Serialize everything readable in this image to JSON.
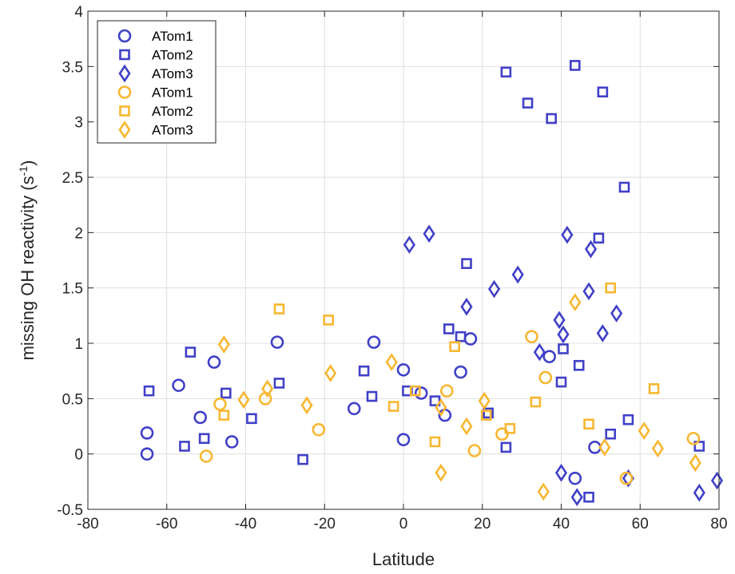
{
  "chart_data": {
    "type": "scatter",
    "xlabel": "Latitude",
    "ylabel": "missing OH reactivity (s",
    "ylabel_sup": "-1",
    "ylabel_suffix": ")",
    "xlim": [
      -80,
      80
    ],
    "ylim": [
      -0.5,
      4
    ],
    "xticks": [
      -80,
      -60,
      -40,
      -20,
      0,
      20,
      40,
      60,
      80
    ],
    "yticks": [
      -0.5,
      0,
      0.5,
      1,
      1.5,
      2,
      2.5,
      3,
      3.5,
      4
    ],
    "grid": true,
    "legend_position": "top-left",
    "colors": {
      "blue": "#4040c8",
      "orange": "#f7b731"
    },
    "series": [
      {
        "name": "ATom1",
        "marker": "circle",
        "color": "#4040c8",
        "points": [
          [
            -65,
            0.19
          ],
          [
            -65,
            0.0
          ],
          [
            -57,
            0.62
          ],
          [
            -51.5,
            0.33
          ],
          [
            -48,
            0.83
          ],
          [
            -43.5,
            0.11
          ],
          [
            -32,
            1.01
          ],
          [
            -12.5,
            0.41
          ],
          [
            -7.5,
            1.01
          ],
          [
            0,
            0.13
          ],
          [
            0,
            0.76
          ],
          [
            4.5,
            0.55
          ],
          [
            10.5,
            0.35
          ],
          [
            14.5,
            0.74
          ],
          [
            17,
            1.04
          ],
          [
            37,
            0.88
          ],
          [
            43.5,
            -0.22
          ],
          [
            48.5,
            0.06
          ]
        ]
      },
      {
        "name": "ATom2",
        "marker": "square",
        "color": "#4040c8",
        "points": [
          [
            -64.5,
            0.57
          ],
          [
            -54,
            0.92
          ],
          [
            -55.5,
            0.07
          ],
          [
            -50.5,
            0.14
          ],
          [
            -45,
            0.55
          ],
          [
            -38.5,
            0.32
          ],
          [
            -31.5,
            0.64
          ],
          [
            -25.5,
            -0.05
          ],
          [
            -10,
            0.75
          ],
          [
            -8,
            0.52
          ],
          [
            1,
            0.57
          ],
          [
            8,
            0.48
          ],
          [
            11.5,
            1.13
          ],
          [
            14.5,
            1.06
          ],
          [
            16,
            1.72
          ],
          [
            21.5,
            0.37
          ],
          [
            26,
            3.45
          ],
          [
            26,
            0.06
          ],
          [
            31.5,
            3.17
          ],
          [
            37.5,
            3.03
          ],
          [
            40,
            0.65
          ],
          [
            40.5,
            0.95
          ],
          [
            43.5,
            3.51
          ],
          [
            44.5,
            0.8
          ],
          [
            47,
            -0.39
          ],
          [
            49.5,
            1.95
          ],
          [
            50.5,
            3.27
          ],
          [
            52.5,
            0.18
          ],
          [
            56,
            2.41
          ],
          [
            57,
            0.31
          ],
          [
            75,
            0.07
          ]
        ]
      },
      {
        "name": "ATom3",
        "marker": "diamond",
        "color": "#4040c8",
        "points": [
          [
            1.5,
            1.89
          ],
          [
            6.5,
            1.99
          ],
          [
            16,
            1.33
          ],
          [
            23,
            1.49
          ],
          [
            29,
            1.62
          ],
          [
            34.5,
            0.92
          ],
          [
            39.5,
            1.21
          ],
          [
            40.5,
            1.08
          ],
          [
            40,
            -0.17
          ],
          [
            41.5,
            1.98
          ],
          [
            44,
            -0.39
          ],
          [
            47,
            1.47
          ],
          [
            47.5,
            1.85
          ],
          [
            50.5,
            1.09
          ],
          [
            54,
            1.27
          ],
          [
            57,
            -0.22
          ],
          [
            75,
            -0.35
          ],
          [
            79.5,
            -0.24
          ]
        ]
      },
      {
        "name": "ATom1",
        "marker": "circle",
        "color": "#f7b731",
        "points": [
          [
            -50,
            -0.02
          ],
          [
            -46.5,
            0.45
          ],
          [
            -35,
            0.5
          ],
          [
            -21.5,
            0.22
          ],
          [
            11,
            0.57
          ],
          [
            18,
            0.03
          ],
          [
            25,
            0.18
          ],
          [
            32.5,
            1.06
          ],
          [
            36,
            0.69
          ],
          [
            56.5,
            -0.22
          ],
          [
            73.5,
            0.14
          ]
        ]
      },
      {
        "name": "ATom2",
        "marker": "square",
        "color": "#f7b731",
        "points": [
          [
            -45.5,
            0.35
          ],
          [
            -31.5,
            1.31
          ],
          [
            -19,
            1.21
          ],
          [
            -2.5,
            0.43
          ],
          [
            3,
            0.57
          ],
          [
            8,
            0.11
          ],
          [
            13,
            0.97
          ],
          [
            21,
            0.35
          ],
          [
            27,
            0.23
          ],
          [
            33.5,
            0.47
          ],
          [
            47,
            0.27
          ],
          [
            52.5,
            1.5
          ],
          [
            63.5,
            0.59
          ]
        ]
      },
      {
        "name": "ATom3",
        "marker": "diamond",
        "color": "#f7b731",
        "points": [
          [
            -45.5,
            0.99
          ],
          [
            -40.5,
            0.49
          ],
          [
            -34.5,
            0.59
          ],
          [
            -24.5,
            0.44
          ],
          [
            -18.5,
            0.73
          ],
          [
            -3,
            0.83
          ],
          [
            9.5,
            0.42
          ],
          [
            9.5,
            -0.17
          ],
          [
            16,
            0.25
          ],
          [
            20.5,
            0.48
          ],
          [
            35.5,
            -0.34
          ],
          [
            43.5,
            1.37
          ],
          [
            51,
            0.06
          ],
          [
            61,
            0.21
          ],
          [
            64.5,
            0.05
          ],
          [
            74,
            -0.08
          ]
        ]
      }
    ]
  }
}
